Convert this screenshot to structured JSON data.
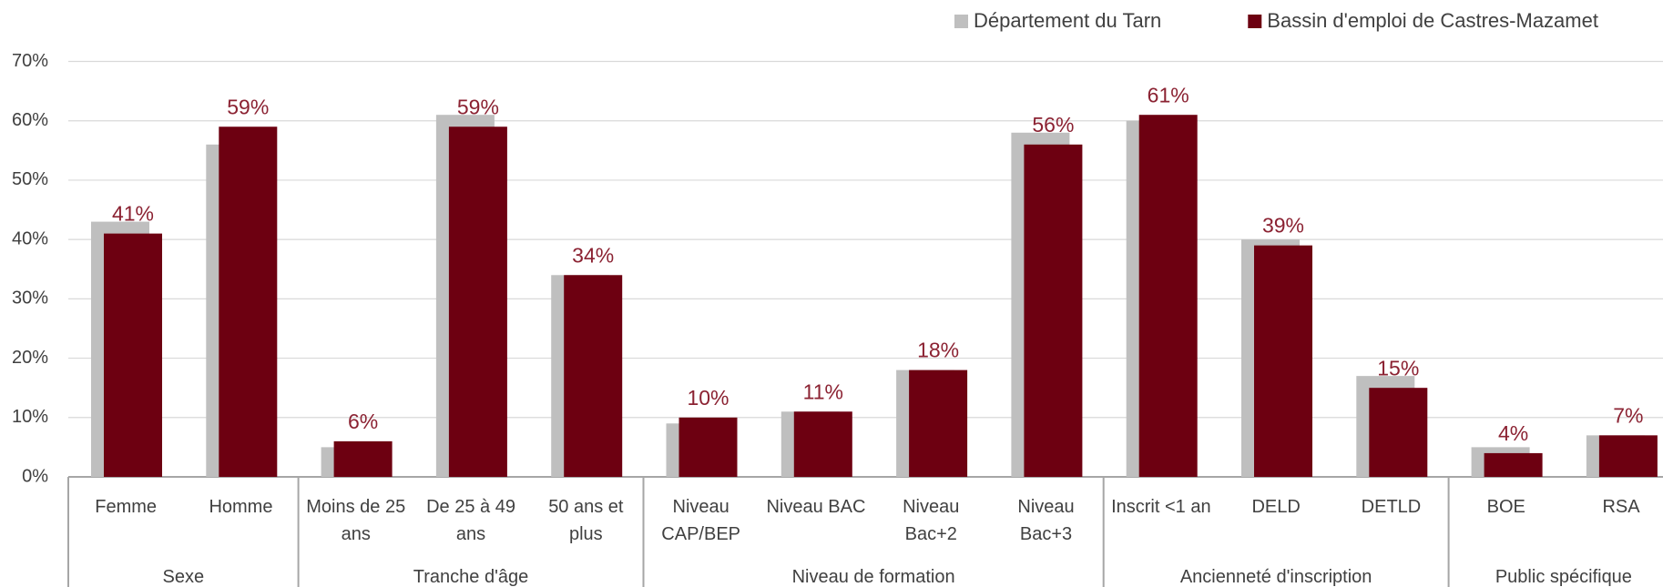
{
  "chart_data": {
    "type": "bar",
    "groups": [
      {
        "name": "Sexe",
        "categories": [
          "Femme",
          "Homme"
        ]
      },
      {
        "name": "Tranche d'âge",
        "categories": [
          "Moins de 25 ans",
          "De 25 à 49 ans",
          "50 ans et plus"
        ]
      },
      {
        "name": "Niveau de formation",
        "categories": [
          "Niveau CAP/BEP",
          "Niveau BAC",
          "Niveau Bac+2",
          "Niveau Bac+3"
        ]
      },
      {
        "name": "Ancienneté d'inscription",
        "categories": [
          "Inscrit <1 an",
          "DELD",
          "DETLD"
        ]
      },
      {
        "name": "Public spécifique",
        "categories": [
          "BOE",
          "RSA"
        ]
      }
    ],
    "series": [
      {
        "name": "Département du Tarn",
        "color": "#bfbfbf",
        "values": [
          43,
          56,
          5,
          61,
          34,
          9,
          11,
          18,
          58,
          60,
          40,
          17,
          5,
          7
        ]
      },
      {
        "name": "Bassin d'emploi de Castres-Mazamet",
        "color": "#6d0011",
        "values": [
          41,
          59,
          6,
          59,
          34,
          10,
          11,
          18,
          56,
          61,
          39,
          15,
          4,
          7
        ],
        "value_labels": [
          "41%",
          "59%",
          "6%",
          "59%",
          "34%",
          "10%",
          "11%",
          "18%",
          "56%",
          "61%",
          "39%",
          "15%",
          "4%",
          "7%"
        ]
      }
    ],
    "ylim": [
      0,
      70
    ],
    "yticks": [
      {
        "value": 0,
        "label": "0%"
      },
      {
        "value": 10,
        "label": "10%"
      },
      {
        "value": 20,
        "label": "20%"
      },
      {
        "value": 30,
        "label": "30%"
      },
      {
        "value": 40,
        "label": "40%"
      },
      {
        "value": 50,
        "label": "50%"
      },
      {
        "value": 60,
        "label": "60%"
      },
      {
        "value": 70,
        "label": "70%"
      }
    ],
    "grid": true,
    "legend": "top"
  }
}
